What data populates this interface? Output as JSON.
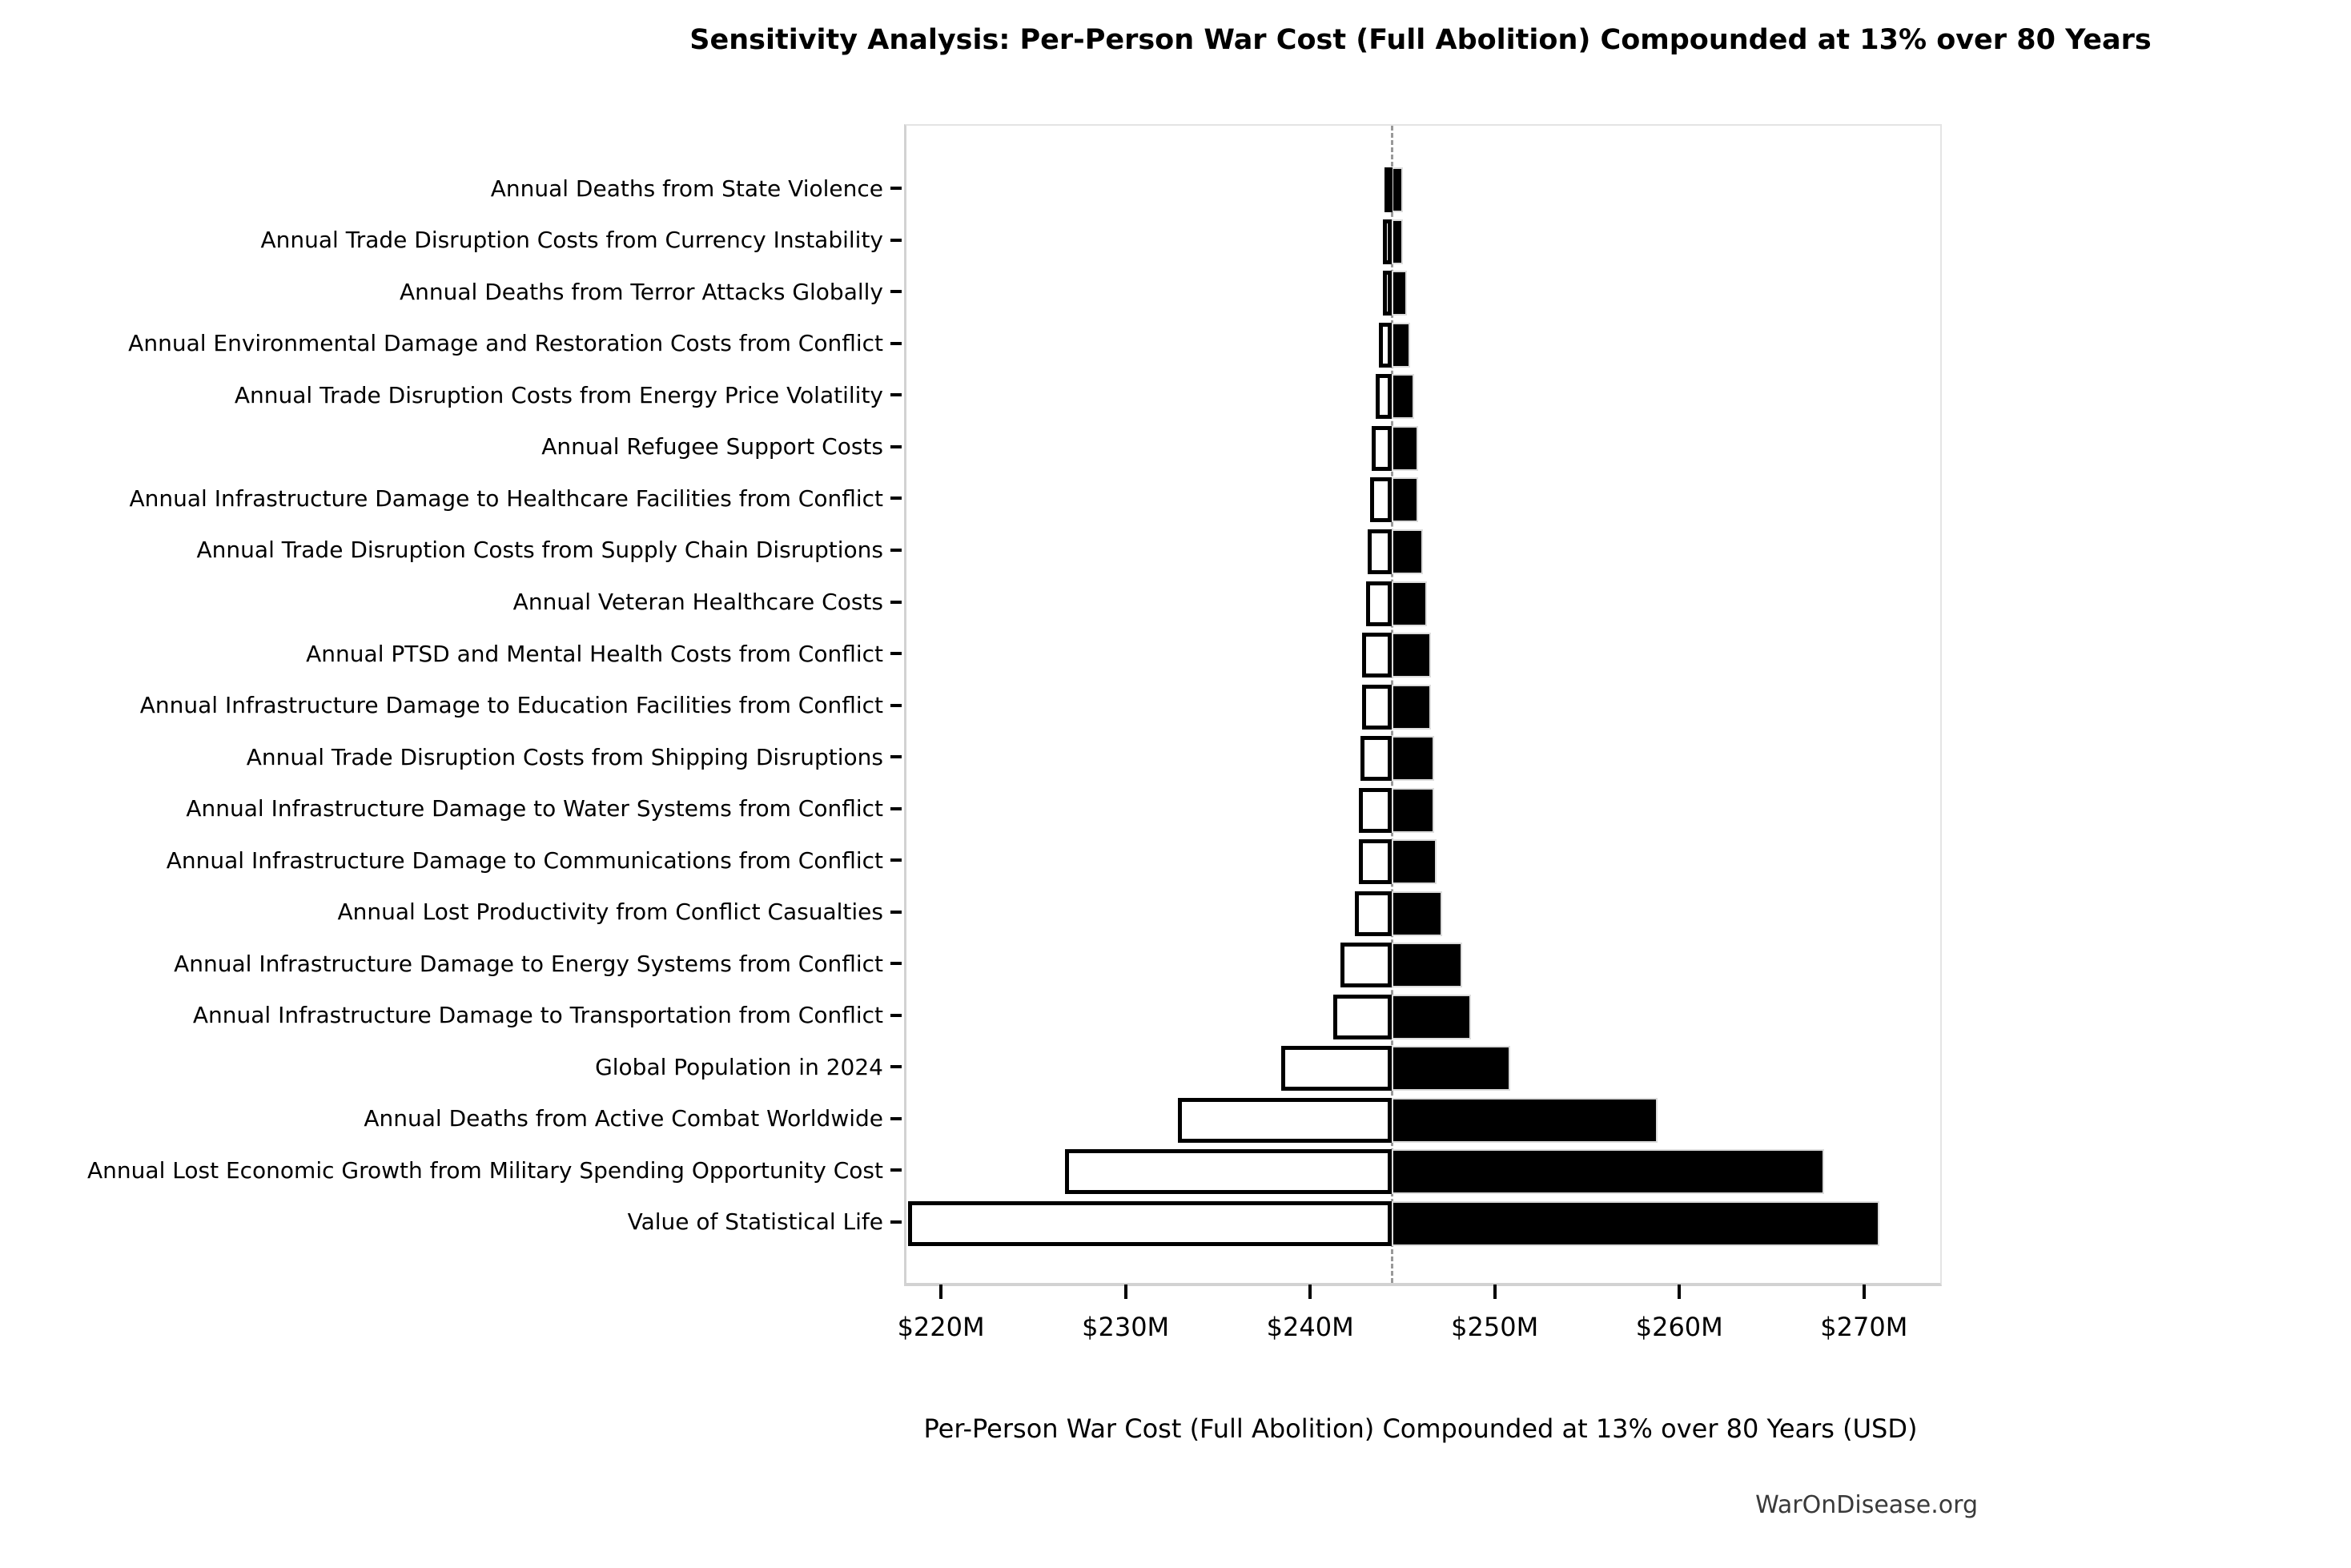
{
  "title": "Sensitivity Analysis: Per-Person War Cost (Full Abolition) Compounded at 13% over 80 Years",
  "footer": "WarOnDisease.org",
  "chart_data": {
    "type": "bar",
    "subtype": "tornado-sensitivity",
    "orientation": "horizontal",
    "title": "Sensitivity Analysis: Per-Person War Cost (Full Abolition) Compounded at 13% over 80 Years",
    "xlabel": "Per-Person War Cost (Full Abolition) Compounded at 13% over 80 Years (USD)",
    "unit": "USD millions",
    "xlim": [
      218,
      274
    ],
    "baseline": 244.3,
    "grid": false,
    "legend_position": "none",
    "x_ticks": [
      {
        "value": 220,
        "label": "$220M"
      },
      {
        "value": 230,
        "label": "$230M"
      },
      {
        "value": 240,
        "label": "$240M"
      },
      {
        "value": 250,
        "label": "$250M"
      },
      {
        "value": 260,
        "label": "$260M"
      },
      {
        "value": 270,
        "label": "$270M"
      }
    ],
    "rows": [
      {
        "label": "Annual Deaths from State Violence",
        "low": 243.9,
        "high": 244.9
      },
      {
        "label": "Annual Trade Disruption Costs from Currency Instability",
        "low": 243.8,
        "high": 244.9
      },
      {
        "label": "Annual Deaths from Terror Attacks Globally",
        "low": 243.8,
        "high": 245.1
      },
      {
        "label": "Annual Environmental Damage and Restoration Costs from Conflict",
        "low": 243.6,
        "high": 245.3
      },
      {
        "label": "Annual Trade Disruption Costs from Energy Price Volatility",
        "low": 243.4,
        "high": 245.5
      },
      {
        "label": "Annual Refugee Support Costs",
        "low": 243.2,
        "high": 245.7
      },
      {
        "label": "Annual Infrastructure Damage to Healthcare Facilities from Conflict",
        "low": 243.1,
        "high": 245.7
      },
      {
        "label": "Annual Trade Disruption Costs from Supply Chain Disruptions",
        "low": 243.0,
        "high": 246.0
      },
      {
        "label": "Annual Veteran Healthcare Costs",
        "low": 242.9,
        "high": 246.2
      },
      {
        "label": "Annual PTSD and Mental Health Costs from Conflict",
        "low": 242.7,
        "high": 246.4
      },
      {
        "label": "Annual Infrastructure Damage to Education Facilities from Conflict",
        "low": 242.7,
        "high": 246.4
      },
      {
        "label": "Annual Trade Disruption Costs from Shipping Disruptions",
        "low": 242.6,
        "high": 246.6
      },
      {
        "label": "Annual Infrastructure Damage to Water Systems from Conflict",
        "low": 242.5,
        "high": 246.6
      },
      {
        "label": "Annual Infrastructure Damage to Communications from Conflict",
        "low": 242.5,
        "high": 246.7
      },
      {
        "label": "Annual Lost Productivity from Conflict Casualties",
        "low": 242.3,
        "high": 247.0
      },
      {
        "label": "Annual Infrastructure Damage to Energy Systems from Conflict",
        "low": 241.5,
        "high": 248.1
      },
      {
        "label": "Annual Infrastructure Damage to Transportation from Conflict",
        "low": 241.1,
        "high": 248.6
      },
      {
        "label": "Global Population in 2024",
        "low": 238.3,
        "high": 250.7
      },
      {
        "label": "Annual Deaths from Active Combat Worldwide",
        "low": 232.7,
        "high": 258.7
      },
      {
        "label": "Annual Lost Economic Growth from Military Spending Opportunity Cost",
        "low": 226.6,
        "high": 267.7
      },
      {
        "label": "Value of Statistical Life",
        "low": 218.1,
        "high": 270.7
      }
    ],
    "colors": {
      "low_bar_fill": "#ffffff",
      "low_bar_edge": "#000000",
      "high_bar_fill": "#000000",
      "baseline_line": "#999999",
      "axis_spine": "#d2d2d2",
      "tick_mark": "#000000"
    }
  }
}
